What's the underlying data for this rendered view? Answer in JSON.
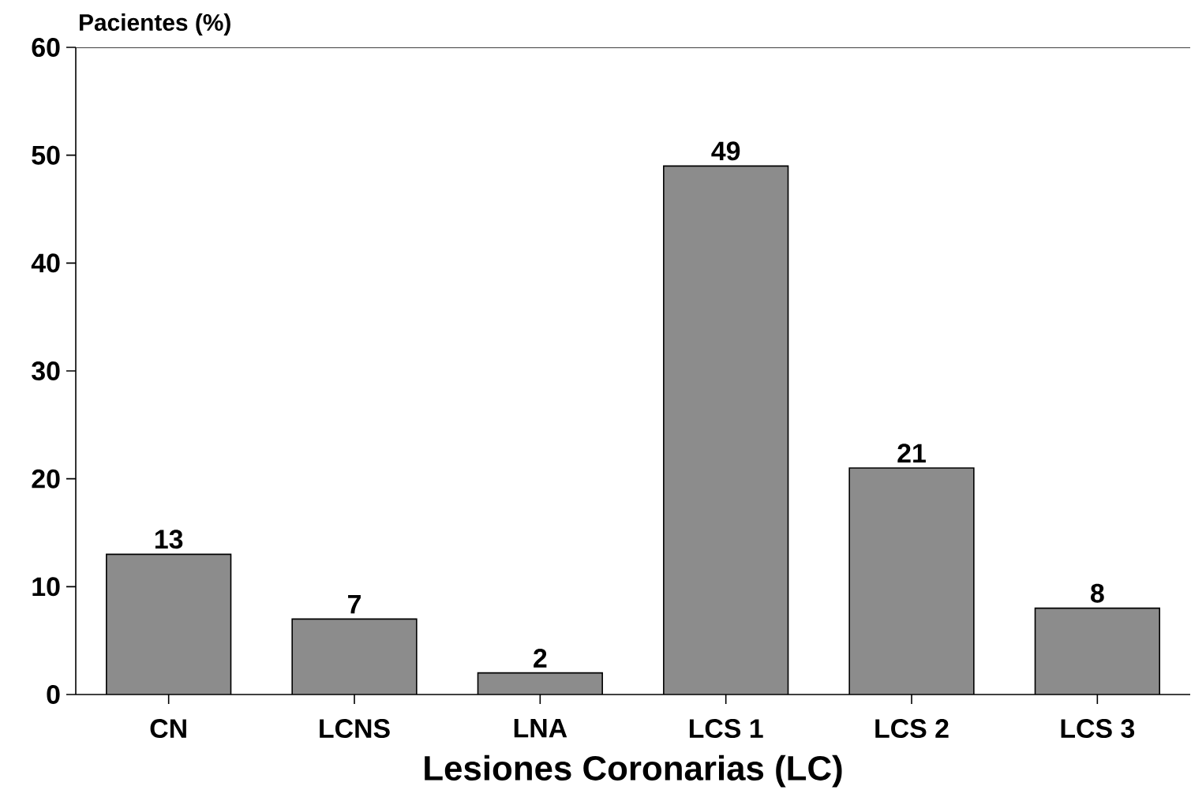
{
  "chart_data": {
    "type": "bar",
    "xlabel": "Lesiones Coronarias (LC)",
    "ylabel": "Pacientes (%)",
    "categories": [
      "CN",
      "LCNS",
      "LNA",
      "LCS 1",
      "LCS 2",
      "LCS 3"
    ],
    "values": [
      13,
      7,
      2,
      49,
      21,
      8
    ],
    "color": "#8c8c8c",
    "ylim": [
      0,
      60
    ],
    "yticks": [
      0,
      10,
      20,
      30,
      40,
      50,
      60
    ],
    "data_labels": true
  }
}
